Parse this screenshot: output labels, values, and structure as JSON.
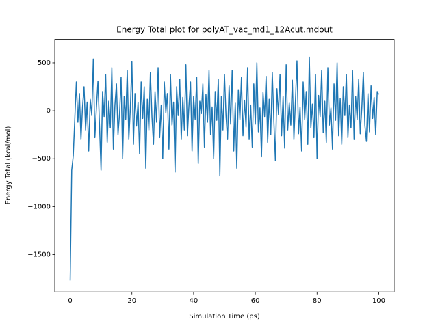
{
  "chart_data": {
    "type": "line",
    "title": "Energy Total plot for polyAT_vac_md1_12Acut.mdout",
    "x_label": "Simulation Time (ps)",
    "y_label": "Energy Total (kcal/mol)",
    "color": "#1f77b4",
    "xlim": [
      -5,
      105
    ],
    "ylim": [
      -1890,
      745
    ],
    "xticks": [
      0,
      20,
      40,
      60,
      80,
      100
    ],
    "yticks": [
      {
        "value": -1500,
        "label": "−1500"
      },
      {
        "value": -1000,
        "label": "−1000"
      },
      {
        "value": -500,
        "label": "−500"
      },
      0,
      500
    ],
    "x": [
      0,
      0.5,
      1,
      1.5,
      2,
      2.5,
      3,
      3.5,
      4,
      4.5,
      5,
      5.5,
      6,
      6.5,
      7,
      7.5,
      8,
      8.5,
      9,
      9.5,
      10,
      10.5,
      11,
      11.5,
      12,
      12.5,
      13,
      13.5,
      14,
      14.5,
      15,
      15.5,
      16,
      16.5,
      17,
      17.5,
      18,
      18.5,
      19,
      19.5,
      20,
      20.5,
      21,
      21.5,
      22,
      22.5,
      23,
      23.5,
      24,
      24.5,
      25,
      25.5,
      26,
      26.5,
      27,
      27.5,
      28,
      28.5,
      29,
      29.5,
      30,
      30.5,
      31,
      31.5,
      32,
      32.5,
      33,
      33.5,
      34,
      34.5,
      35,
      35.5,
      36,
      36.5,
      37,
      37.5,
      38,
      38.5,
      39,
      39.5,
      40,
      40.5,
      41,
      41.5,
      42,
      42.5,
      43,
      43.5,
      44,
      44.5,
      45,
      45.5,
      46,
      46.5,
      47,
      47.5,
      48,
      48.5,
      49,
      49.5,
      50,
      50.5,
      51,
      51.5,
      52,
      52.5,
      53,
      53.5,
      54,
      54.5,
      55,
      55.5,
      56,
      56.5,
      57,
      57.5,
      58,
      58.5,
      59,
      59.5,
      60,
      60.5,
      61,
      61.5,
      62,
      62.5,
      63,
      63.5,
      64,
      64.5,
      65,
      65.5,
      66,
      66.5,
      67,
      67.5,
      68,
      68.5,
      69,
      69.5,
      70,
      70.5,
      71,
      71.5,
      72,
      72.5,
      73,
      73.5,
      74,
      74.5,
      75,
      75.5,
      76,
      76.5,
      77,
      77.5,
      78,
      78.5,
      79,
      79.5,
      80,
      80.5,
      81,
      81.5,
      82,
      82.5,
      83,
      83.5,
      84,
      84.5,
      85,
      85.5,
      86,
      86.5,
      87,
      87.5,
      88,
      88.5,
      89,
      89.5,
      90,
      90.5,
      91,
      91.5,
      92,
      92.5,
      93,
      93.5,
      94,
      94.5,
      95,
      95.5,
      96,
      96.5,
      97,
      97.5,
      98,
      98.5,
      99,
      99.5,
      100
    ],
    "values": [
      -1770,
      -620,
      -470,
      -80,
      300,
      -120,
      180,
      -300,
      40,
      250,
      -200,
      90,
      -420,
      120,
      -50,
      540,
      -280,
      30,
      310,
      -150,
      -620,
      200,
      -60,
      380,
      -330,
      100,
      -180,
      450,
      -400,
      60,
      280,
      -250,
      -30,
      350,
      -500,
      150,
      -90,
      420,
      -300,
      20,
      510,
      -350,
      180,
      -160,
      90,
      -450,
      300,
      -80,
      250,
      -600,
      120,
      -200,
      400,
      -60,
      -350,
      200,
      -120,
      450,
      -280,
      60,
      -500,
      300,
      -20,
      180,
      -400,
      380,
      -150,
      90,
      -640,
      250,
      -50,
      330,
      -300,
      140,
      -200,
      480,
      -260,
      60,
      300,
      -420,
      150,
      -90,
      350,
      -550,
      100,
      -30,
      280,
      -380,
      170,
      -120,
      420,
      -250,
      40,
      -500,
      200,
      -100,
      330,
      -680,
      150,
      -200,
      380,
      -50,
      -300,
      260,
      -140,
      420,
      -420,
      80,
      -600,
      220,
      -90,
      350,
      -260,
      110,
      -170,
      450,
      -300,
      60,
      -380,
      280,
      -140,
      500,
      -220,
      30,
      -480,
      190,
      -60,
      360,
      -330,
      120,
      -250,
      400,
      -100,
      -520,
      230,
      -40,
      380,
      -260,
      150,
      -390,
      480,
      -200,
      80,
      -150,
      320,
      -300,
      100,
      520,
      -240,
      40,
      -420,
      300,
      -90,
      200,
      -350,
      560,
      -180,
      70,
      -280,
      380,
      -500,
      160,
      -60,
      420,
      -230,
      100,
      -330,
      450,
      -150,
      30,
      -400,
      280,
      -100,
      500,
      -260,
      130,
      -350,
      250,
      -50,
      380,
      -280,
      60,
      -180,
      420,
      -300,
      150,
      -90,
      330,
      -240,
      20,
      400,
      -150,
      -320,
      180,
      -220,
      260,
      -80,
      140,
      -250,
      200,
      170
    ]
  }
}
